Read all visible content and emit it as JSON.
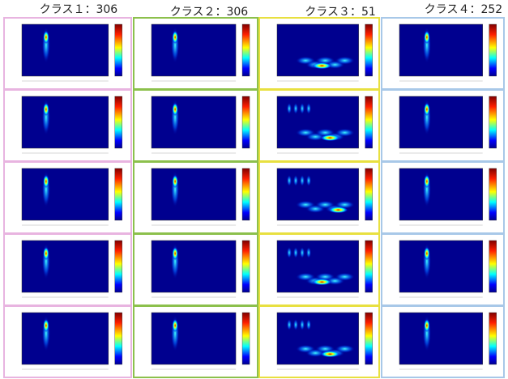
{
  "columns": [
    {
      "header": "クラス１：306"
    },
    {
      "header": "クラス２：306"
    },
    {
      "header": "クラス３：51"
    },
    {
      "header": "クラス４：252"
    }
  ]
}
